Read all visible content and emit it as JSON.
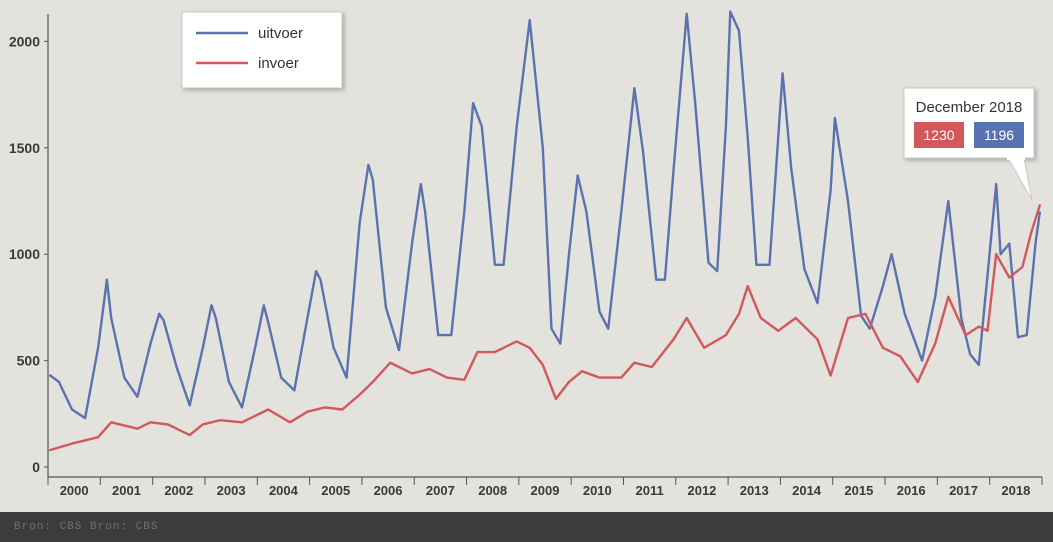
{
  "chart_data": {
    "type": "line",
    "title": "",
    "xlabel": "",
    "ylabel": "",
    "ylim": [
      0,
      2100
    ],
    "yticks": [
      0,
      500,
      1000,
      1500,
      2000
    ],
    "year_labels": [
      "2000",
      "2001",
      "2002",
      "2003",
      "2004",
      "2005",
      "2006",
      "2007",
      "2008",
      "2009",
      "2010",
      "2011",
      "2012",
      "2013",
      "2014",
      "2015",
      "2016",
      "2017",
      "2018"
    ],
    "grid": false,
    "legend_position": "top-left",
    "series": [
      {
        "name": "uitvoer",
        "color": "#5a73b0",
        "points": [
          [
            "2000-01",
            430
          ],
          [
            "2000-03",
            400
          ],
          [
            "2000-06",
            270
          ],
          [
            "2000-09",
            230
          ],
          [
            "2000-12",
            560
          ],
          [
            "2001-02",
            880
          ],
          [
            "2001-03",
            700
          ],
          [
            "2001-06",
            420
          ],
          [
            "2001-09",
            330
          ],
          [
            "2001-12",
            580
          ],
          [
            "2002-02",
            720
          ],
          [
            "2002-03",
            690
          ],
          [
            "2002-06",
            470
          ],
          [
            "2002-09",
            290
          ],
          [
            "2002-12",
            560
          ],
          [
            "2003-02",
            760
          ],
          [
            "2003-03",
            700
          ],
          [
            "2003-06",
            400
          ],
          [
            "2003-09",
            280
          ],
          [
            "2003-12",
            560
          ],
          [
            "2004-02",
            760
          ],
          [
            "2004-03",
            680
          ],
          [
            "2004-06",
            420
          ],
          [
            "2004-09",
            360
          ],
          [
            "2004-12",
            700
          ],
          [
            "2005-02",
            920
          ],
          [
            "2005-03",
            880
          ],
          [
            "2005-06",
            560
          ],
          [
            "2005-09",
            420
          ],
          [
            "2005-12",
            1150
          ],
          [
            "2006-02",
            1420
          ],
          [
            "2006-03",
            1350
          ],
          [
            "2006-06",
            750
          ],
          [
            "2006-09",
            550
          ],
          [
            "2006-12",
            1050
          ],
          [
            "2007-02",
            1330
          ],
          [
            "2007-03",
            1200
          ],
          [
            "2007-06",
            620
          ],
          [
            "2007-09",
            620
          ],
          [
            "2007-12",
            1200
          ],
          [
            "2008-02",
            1710
          ],
          [
            "2008-04",
            1600
          ],
          [
            "2008-07",
            950
          ],
          [
            "2008-09",
            950
          ],
          [
            "2008-12",
            1600
          ],
          [
            "2009-03",
            2100
          ],
          [
            "2009-06",
            1500
          ],
          [
            "2009-08",
            650
          ],
          [
            "2009-10",
            580
          ],
          [
            "2009-12",
            1000
          ],
          [
            "2010-02",
            1370
          ],
          [
            "2010-04",
            1200
          ],
          [
            "2010-07",
            730
          ],
          [
            "2010-09",
            650
          ],
          [
            "2010-12",
            1200
          ],
          [
            "2011-03",
            1780
          ],
          [
            "2011-05",
            1480
          ],
          [
            "2011-08",
            880
          ],
          [
            "2011-10",
            880
          ],
          [
            "2011-12",
            1400
          ],
          [
            "2012-03",
            2130
          ],
          [
            "2012-05",
            1700
          ],
          [
            "2012-08",
            960
          ],
          [
            "2012-10",
            920
          ],
          [
            "2012-12",
            1600
          ],
          [
            "2013-01",
            2140
          ],
          [
            "2013-03",
            2050
          ],
          [
            "2013-05",
            1550
          ],
          [
            "2013-07",
            950
          ],
          [
            "2013-10",
            950
          ],
          [
            "2014-01",
            1850
          ],
          [
            "2014-03",
            1400
          ],
          [
            "2014-06",
            930
          ],
          [
            "2014-09",
            770
          ],
          [
            "2014-12",
            1300
          ],
          [
            "2015-01",
            1640
          ],
          [
            "2015-04",
            1250
          ],
          [
            "2015-07",
            710
          ],
          [
            "2015-09",
            650
          ],
          [
            "2015-12",
            850
          ],
          [
            "2016-02",
            1000
          ],
          [
            "2016-05",
            720
          ],
          [
            "2016-09",
            500
          ],
          [
            "2016-12",
            800
          ],
          [
            "2017-03",
            1250
          ],
          [
            "2017-06",
            700
          ],
          [
            "2017-08",
            530
          ],
          [
            "2017-10",
            480
          ],
          [
            "2017-12",
            900
          ],
          [
            "2018-02",
            1330
          ],
          [
            "2018-03",
            1000
          ],
          [
            "2018-05",
            1050
          ],
          [
            "2018-07",
            610
          ],
          [
            "2018-09",
            620
          ],
          [
            "2018-11",
            1050
          ],
          [
            "2018-12",
            1196
          ]
        ]
      },
      {
        "name": "invoer",
        "color": "#d2585c",
        "points": [
          [
            "2000-01",
            80
          ],
          [
            "2000-06",
            110
          ],
          [
            "2000-12",
            140
          ],
          [
            "2001-03",
            210
          ],
          [
            "2001-09",
            180
          ],
          [
            "2001-12",
            210
          ],
          [
            "2002-04",
            200
          ],
          [
            "2002-09",
            150
          ],
          [
            "2002-12",
            200
          ],
          [
            "2003-04",
            220
          ],
          [
            "2003-09",
            210
          ],
          [
            "2003-12",
            240
          ],
          [
            "2004-03",
            270
          ],
          [
            "2004-08",
            210
          ],
          [
            "2004-12",
            260
          ],
          [
            "2005-04",
            280
          ],
          [
            "2005-08",
            270
          ],
          [
            "2005-12",
            340
          ],
          [
            "2006-03",
            400
          ],
          [
            "2006-07",
            490
          ],
          [
            "2006-12",
            440
          ],
          [
            "2007-04",
            460
          ],
          [
            "2007-08",
            420
          ],
          [
            "2007-12",
            410
          ],
          [
            "2008-03",
            540
          ],
          [
            "2008-07",
            540
          ],
          [
            "2008-12",
            590
          ],
          [
            "2009-03",
            560
          ],
          [
            "2009-06",
            480
          ],
          [
            "2009-09",
            320
          ],
          [
            "2009-12",
            400
          ],
          [
            "2010-03",
            450
          ],
          [
            "2010-07",
            420
          ],
          [
            "2010-12",
            420
          ],
          [
            "2011-03",
            490
          ],
          [
            "2011-07",
            470
          ],
          [
            "2011-12",
            600
          ],
          [
            "2012-03",
            700
          ],
          [
            "2012-07",
            560
          ],
          [
            "2012-12",
            620
          ],
          [
            "2013-03",
            720
          ],
          [
            "2013-05",
            850
          ],
          [
            "2013-08",
            700
          ],
          [
            "2013-12",
            640
          ],
          [
            "2014-04",
            700
          ],
          [
            "2014-09",
            600
          ],
          [
            "2014-12",
            430
          ],
          [
            "2015-04",
            700
          ],
          [
            "2015-08",
            720
          ],
          [
            "2015-12",
            560
          ],
          [
            "2016-04",
            520
          ],
          [
            "2016-08",
            400
          ],
          [
            "2016-12",
            580
          ],
          [
            "2017-03",
            800
          ],
          [
            "2017-07",
            620
          ],
          [
            "2017-10",
            660
          ],
          [
            "2017-12",
            640
          ],
          [
            "2018-02",
            1000
          ],
          [
            "2018-05",
            890
          ],
          [
            "2018-08",
            940
          ],
          [
            "2018-10",
            1100
          ],
          [
            "2018-12",
            1230
          ]
        ]
      }
    ],
    "tooltip": {
      "title": "December 2018",
      "invoer_value": "1230",
      "uitvoer_value": "1196"
    }
  },
  "footer": {
    "text": "Bron: CBS   Bron: CBS"
  }
}
